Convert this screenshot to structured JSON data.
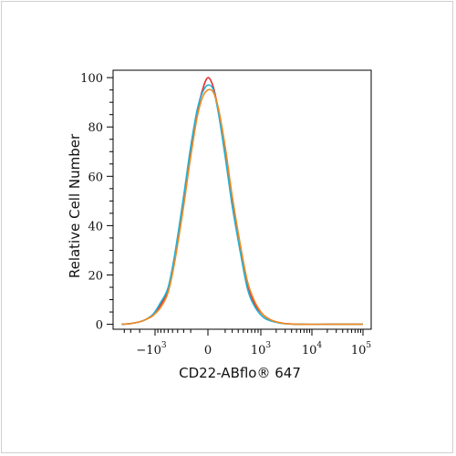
{
  "chart_data": {
    "type": "line",
    "title": "",
    "xlabel": "CD22-ABflo® 647",
    "ylabel": "Relative Cell Number",
    "x_scale": "biexponential",
    "x_ticks": [
      -1000,
      0,
      1000,
      10000,
      100000
    ],
    "xlim": [
      -4500,
      100000
    ],
    "y_ticks": [
      0,
      20,
      40,
      60,
      80,
      100
    ],
    "ylim": [
      -2,
      103
    ],
    "grid": false,
    "legend": "none",
    "series": [
      {
        "color": "#e03030",
        "x": [
          -4500,
          -3000,
          -2000,
          -1500,
          -1100,
          -800,
          -600,
          -450,
          -300,
          -200,
          -120,
          -60,
          0,
          60,
          120,
          200,
          300,
          450,
          600,
          800,
          1100,
          1500,
          2000,
          3000,
          6000,
          20000,
          100000
        ],
        "y": [
          0,
          0.3,
          1,
          2,
          4,
          8,
          14,
          28,
          50,
          70,
          86,
          95,
          100,
          96,
          86,
          70,
          50,
          30,
          16,
          8,
          4,
          2,
          1,
          0.3,
          0,
          0,
          0
        ]
      },
      {
        "color": "#1fb0d8",
        "x": [
          -4500,
          -3000,
          -2000,
          -1500,
          -1100,
          -800,
          -600,
          -450,
          -300,
          -200,
          -120,
          -60,
          0,
          60,
          120,
          200,
          300,
          450,
          600,
          800,
          1100,
          1500,
          2000,
          3000,
          6000,
          20000,
          100000
        ],
        "y": [
          0,
          0.3,
          1,
          2,
          4,
          9,
          15,
          29,
          52,
          72,
          87,
          94,
          97,
          95,
          85,
          68,
          48,
          28,
          14,
          7,
          3,
          1.5,
          0.8,
          0.2,
          0,
          0,
          0
        ]
      },
      {
        "color": "#f08a20",
        "x": [
          -4500,
          -3000,
          -2000,
          -1500,
          -1100,
          -800,
          -600,
          -450,
          -300,
          -200,
          -120,
          -60,
          0,
          60,
          120,
          200,
          300,
          450,
          600,
          800,
          1100,
          1500,
          2000,
          3000,
          6000,
          20000,
          100000
        ],
        "y": [
          0,
          0.3,
          1,
          2,
          3.5,
          7,
          13,
          26,
          48,
          68,
          84,
          92,
          95,
          94,
          87,
          72,
          52,
          31,
          17,
          9,
          4,
          2,
          1,
          0.3,
          0,
          0,
          0
        ]
      }
    ]
  }
}
